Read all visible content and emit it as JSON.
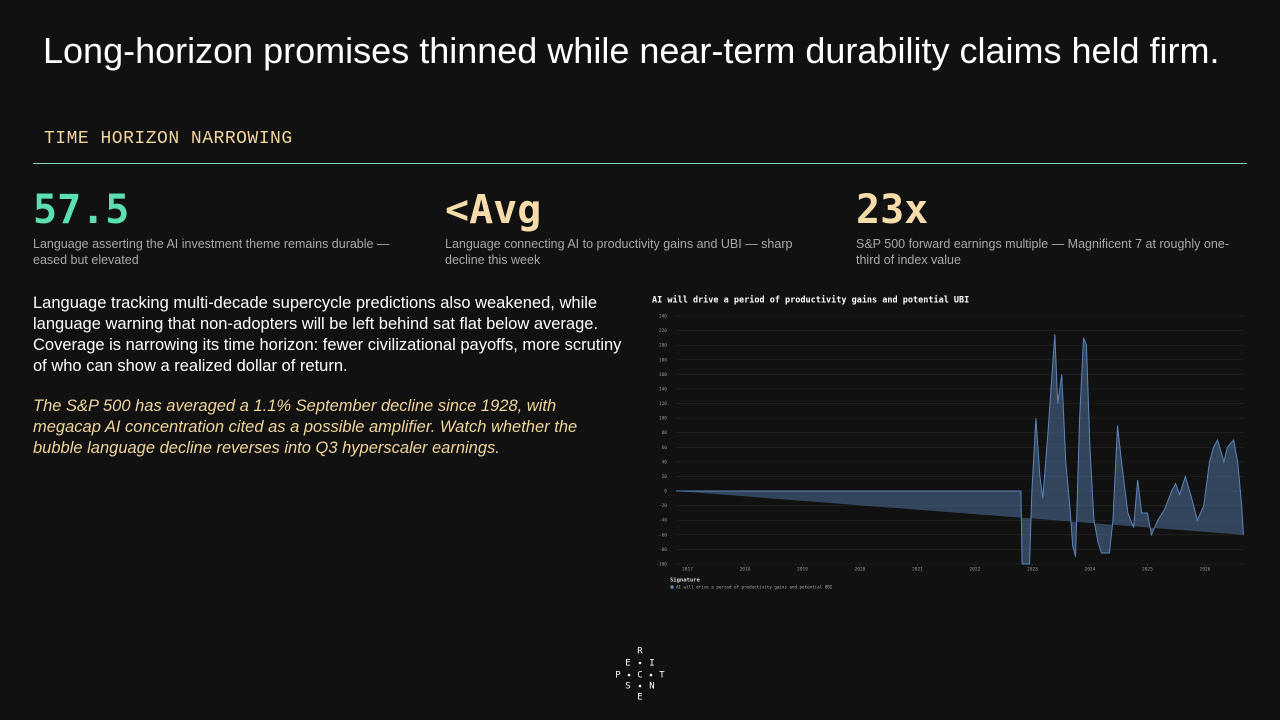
{
  "header": {
    "title": "Long-horizon promises thinned while near-term durability claims held firm.",
    "subtitle": "TIME HORIZON NARROWING"
  },
  "stats": [
    {
      "value": "57.5",
      "description": "Language asserting the AI investment theme remains durable — eased but elevated"
    },
    {
      "value": "<Avg",
      "description": "Language connecting AI to productivity gains and UBI — sharp decline this week"
    },
    {
      "value": "23x",
      "description": "S&P 500 forward earnings multiple — Magnificent 7 at roughly one-third of index value"
    }
  ],
  "body": {
    "paragraph": "Language tracking multi-decade supercycle predictions also weakened, while language warning that non-adopters will be left behind sat flat below average. Coverage is narrowing its time horizon: fewer civilizational payoffs, more scrutiny of who can show a realized dollar of return.",
    "note": "The S&P 500 has averaged a 1.1% September decline since 1928, with megacap AI concentration cited as a possible amplifier. Watch whether the bubble language decline reverses into Q3 hyperscaler earnings."
  },
  "chart_data": {
    "type": "area",
    "title": "AI will drive a period of productivity gains and potential UBI",
    "x": [
      2016.8,
      2022.8,
      2022.82,
      2022.95,
      2022.99,
      2023.06,
      2023.13,
      2023.18,
      2023.27,
      2023.34,
      2023.39,
      2023.44,
      2023.51,
      2023.58,
      2023.65,
      2023.7,
      2023.75,
      2023.82,
      2023.89,
      2023.94,
      2024.0,
      2024.07,
      2024.14,
      2024.2,
      2024.34,
      2024.4,
      2024.48,
      2024.55,
      2024.66,
      2024.76,
      2024.83,
      2024.9,
      2025.0,
      2025.07,
      2025.18,
      2025.3,
      2025.42,
      2025.49,
      2025.56,
      2025.66,
      2025.77,
      2025.87,
      2025.98,
      2026.08,
      2026.15,
      2026.22,
      2026.33,
      2026.39,
      2026.5,
      2026.57,
      2026.64,
      2026.67
    ],
    "series": [
      {
        "name": "AI will drive a period of productivity gains and potential UBI",
        "color": "#5b85b8",
        "values": [
          0,
          0,
          -100,
          -100,
          0,
          100,
          20,
          -10,
          80,
          160,
          215,
          120,
          160,
          40,
          -20,
          -75,
          -90,
          100,
          210,
          200,
          60,
          -40,
          -70,
          -85,
          -85,
          -40,
          90,
          40,
          -30,
          -50,
          15,
          -30,
          -30,
          -60,
          -40,
          -25,
          0,
          10,
          -5,
          20,
          -10,
          -40,
          -20,
          40,
          60,
          70,
          40,
          60,
          70,
          40,
          -20,
          -60
        ]
      }
    ],
    "xlim": [
      2016.8,
      2026.68
    ],
    "xticks": [
      2017,
      2018,
      2019,
      2020,
      2021,
      2022,
      2023,
      2024,
      2025,
      2026
    ],
    "ylim": [
      -100,
      240
    ],
    "yticks": [
      -100,
      -80,
      -60,
      -40,
      -20,
      0,
      20,
      40,
      60,
      80,
      100,
      120,
      140,
      160,
      180,
      200,
      220,
      240
    ],
    "grid": true,
    "legend_title": "Signature"
  },
  "logo": {
    "letters": [
      "R",
      "E",
      "I",
      "P",
      "C",
      "T",
      "S",
      "N",
      "E"
    ]
  }
}
